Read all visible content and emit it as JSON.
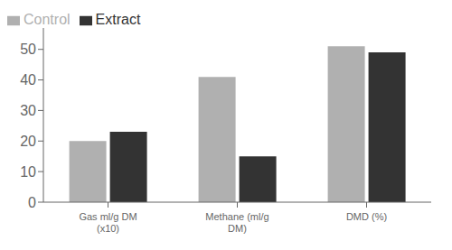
{
  "chart_data": {
    "type": "bar",
    "categories": [
      "Gas ml/g DM\n(x10)",
      "Methane (ml/g\nDM)",
      "DMD (%)"
    ],
    "series": [
      {
        "name": "Control",
        "color": "#b0b0b0",
        "values": [
          20,
          41,
          51
        ]
      },
      {
        "name": "Extract",
        "color": "#333333",
        "values": [
          23,
          15,
          49
        ]
      }
    ],
    "ylim": [
      0,
      57
    ],
    "yticks": [
      0,
      10,
      20,
      30,
      40,
      50
    ],
    "legend": "upper left",
    "grid": false
  }
}
